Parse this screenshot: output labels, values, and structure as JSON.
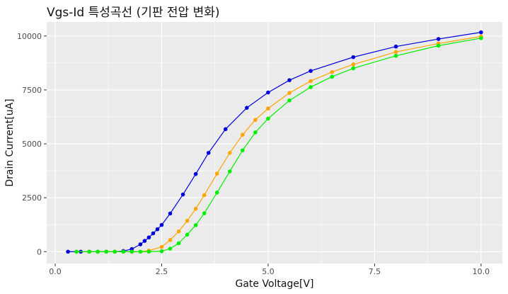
{
  "chart_data": {
    "type": "line",
    "title": "Vgs-Id 특성곡선 (기판 전압 변화)",
    "xlabel": "Gate Voltage[V]",
    "ylabel": "Drain Current[uA]",
    "xlim": [
      -0.2,
      10.5
    ],
    "ylim": [
      -550,
      10650
    ],
    "x_ticks": [
      0,
      2.5,
      5,
      7.5,
      10
    ],
    "x_tick_labels": [
      "0.0",
      "2.5",
      "5.0",
      "7.5",
      "10.0"
    ],
    "y_ticks": [
      0,
      2500,
      5000,
      7500,
      10000
    ],
    "y_tick_labels": [
      "0",
      "2500",
      "5000",
      "7500",
      "10000"
    ],
    "grid": true,
    "legend": "none",
    "background_color": "#ebebeb",
    "series": [
      {
        "color": "#0000dd",
        "x": [
          0.3,
          0.6,
          0.8,
          1.0,
          1.2,
          1.4,
          1.6,
          1.8,
          2.0,
          2.1,
          2.2,
          2.3,
          2.4,
          2.5,
          2.7,
          3.0,
          3.3,
          3.6,
          4.0,
          4.5,
          5.0,
          5.5,
          6.0,
          7.0,
          8.0,
          9.0,
          10.0
        ],
        "y": [
          0,
          0,
          0,
          0,
          0,
          0,
          30,
          120,
          340,
          500,
          660,
          850,
          1040,
          1240,
          1770,
          2650,
          3600,
          4580,
          5680,
          6670,
          7380,
          7950,
          8380,
          9020,
          9510,
          9860,
          10170
        ]
      },
      {
        "color": "#ffa500",
        "x": [
          0.5,
          0.8,
          1.0,
          1.2,
          1.4,
          1.6,
          1.8,
          2.0,
          2.2,
          2.5,
          2.7,
          2.9,
          3.1,
          3.3,
          3.5,
          3.8,
          4.1,
          4.4,
          4.7,
          5.0,
          5.5,
          6.0,
          6.5,
          7.0,
          8.0,
          9.0,
          10.0
        ],
        "y": [
          0,
          0,
          0,
          0,
          0,
          0,
          0,
          0,
          50,
          220,
          540,
          940,
          1430,
          1990,
          2620,
          3620,
          4580,
          5420,
          6110,
          6640,
          7360,
          7910,
          8330,
          8680,
          9260,
          9650,
          9980
        ]
      },
      {
        "color": "#00ee00",
        "x": [
          0.5,
          0.8,
          1.0,
          1.2,
          1.4,
          1.6,
          1.8,
          2.0,
          2.2,
          2.5,
          2.7,
          2.9,
          3.1,
          3.3,
          3.5,
          3.8,
          4.1,
          4.4,
          4.7,
          5.0,
          5.5,
          6.0,
          6.5,
          7.0,
          8.0,
          9.0,
          10.0
        ],
        "y": [
          0,
          0,
          0,
          0,
          0,
          0,
          0,
          0,
          0,
          20,
          140,
          390,
          790,
          1230,
          1780,
          2740,
          3720,
          4700,
          5530,
          6170,
          7010,
          7630,
          8110,
          8500,
          9080,
          9550,
          9900
        ]
      }
    ]
  }
}
